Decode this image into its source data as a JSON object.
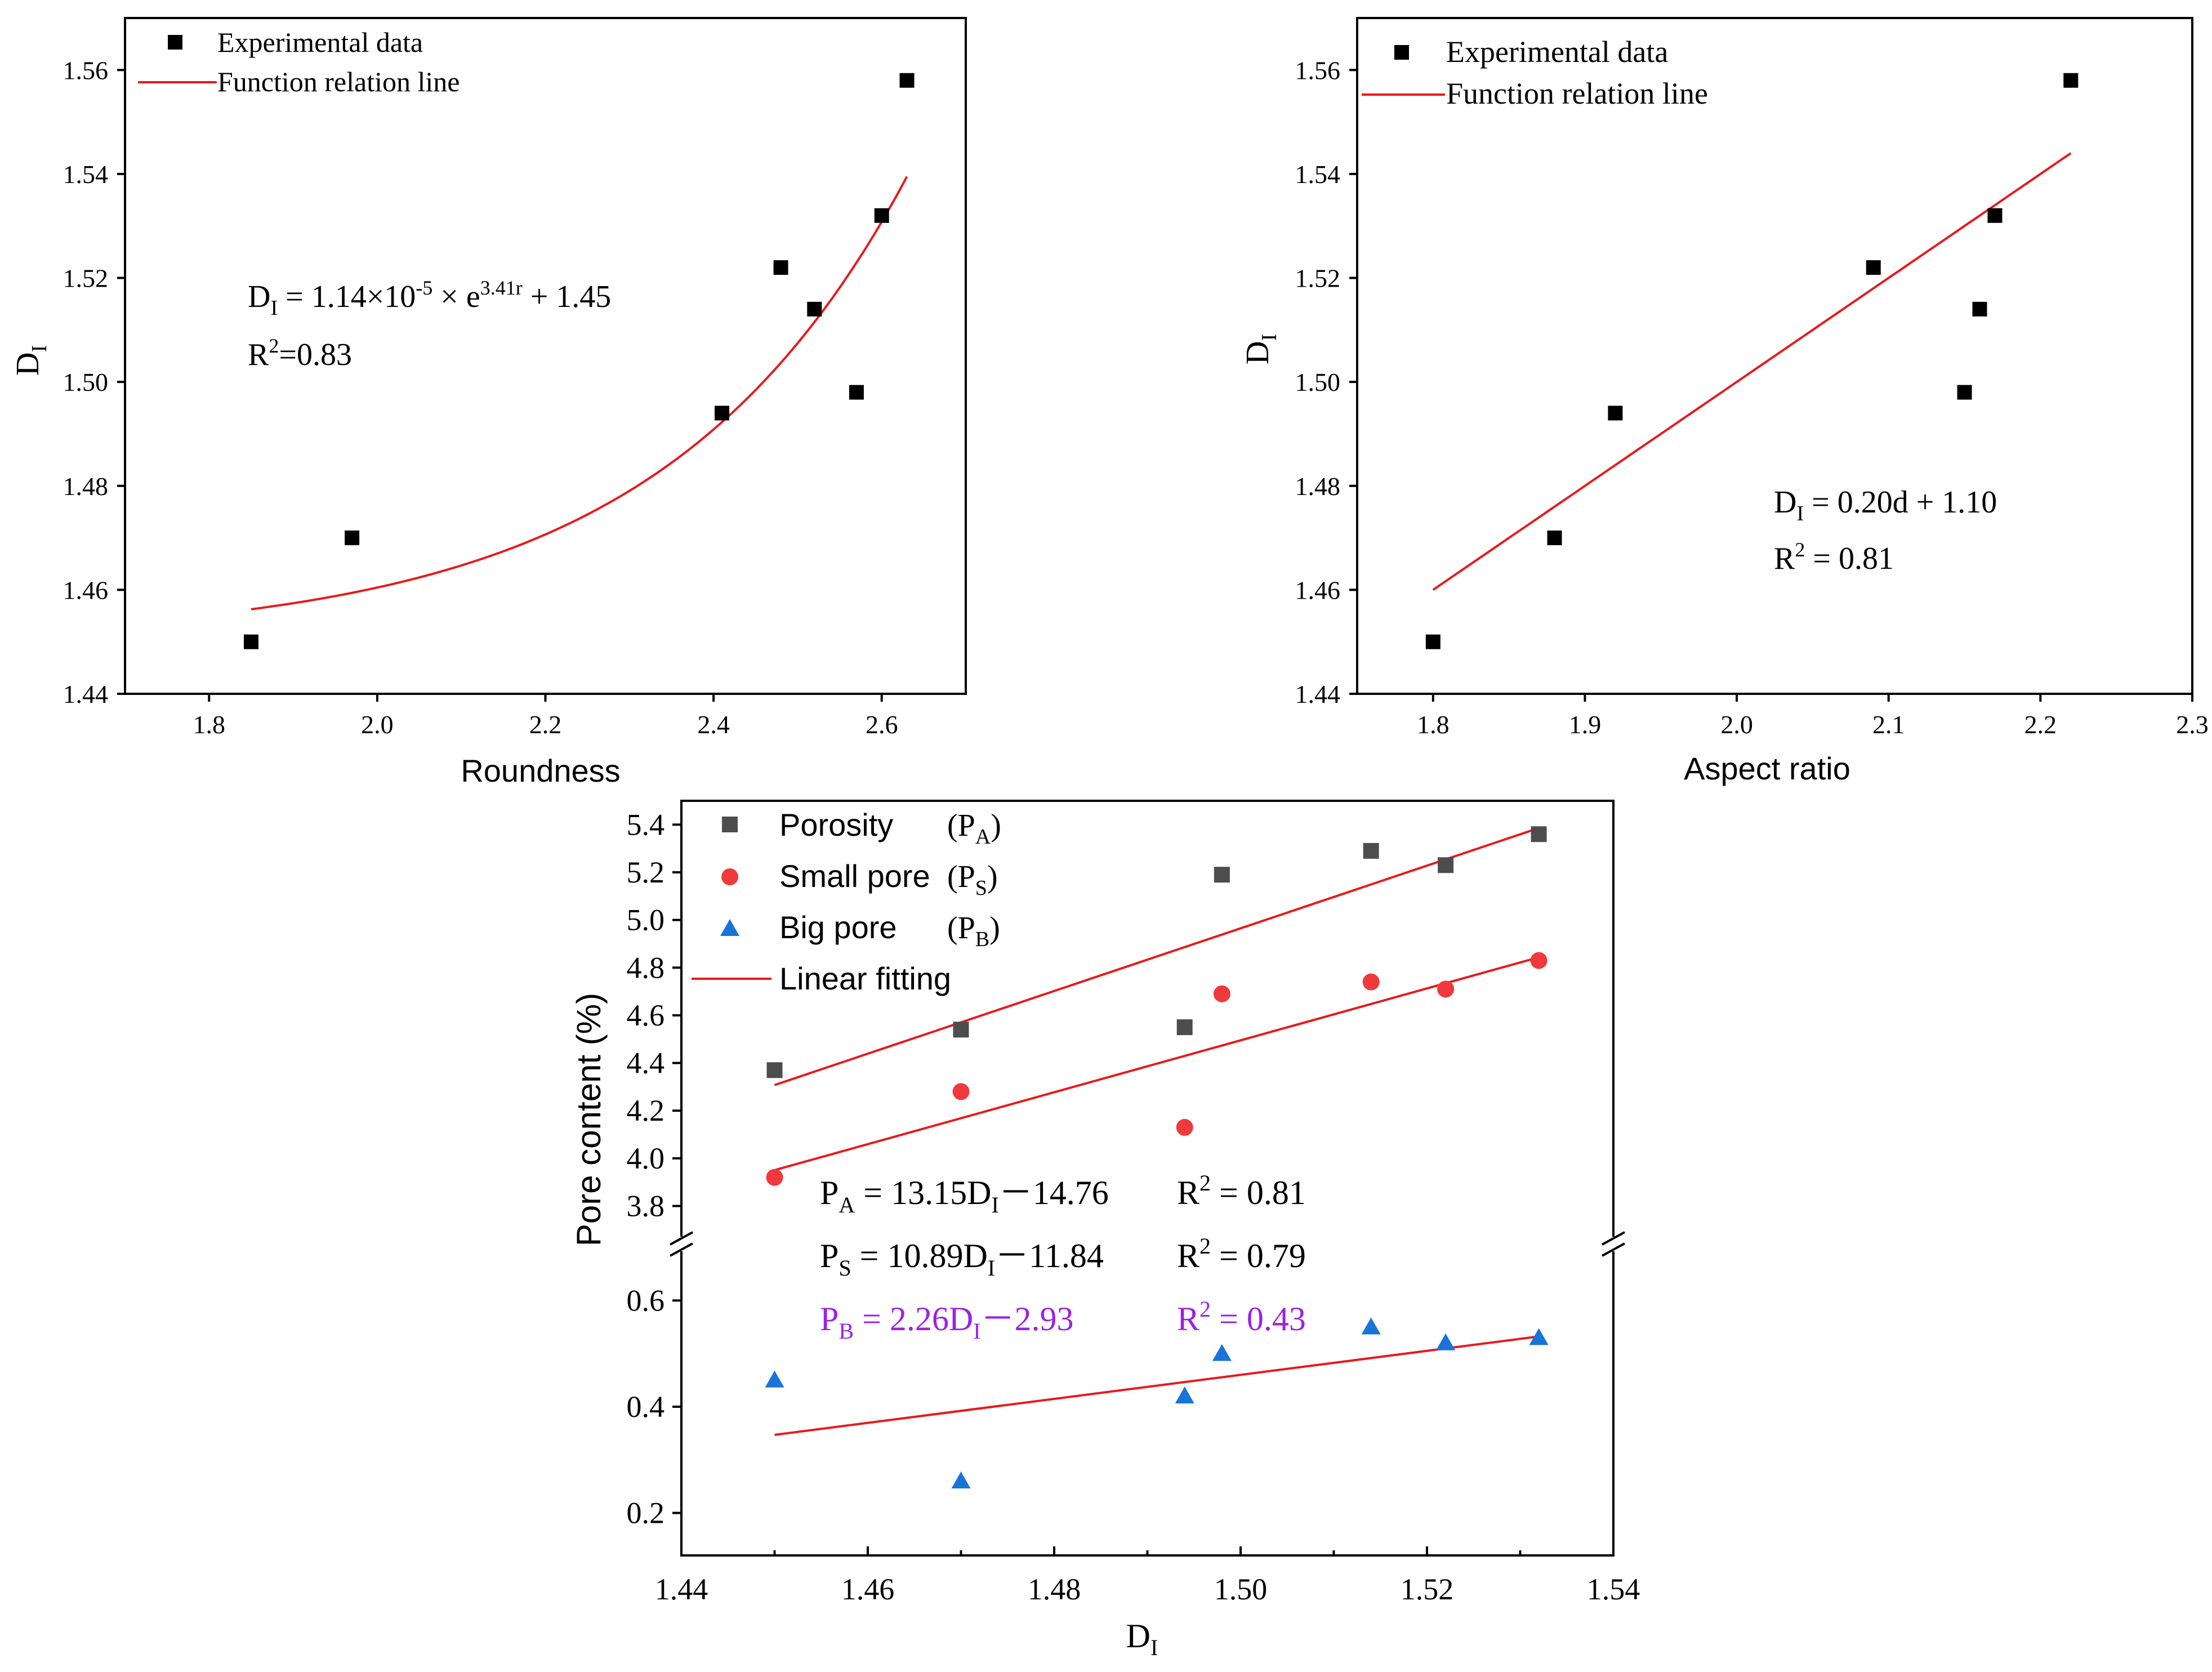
{
  "colors": {
    "experimental": "#000000",
    "fit_line": "#e8191c",
    "porosity": "#4d4d4d",
    "small_pore": "#ee3a3c",
    "big_pore": "#1874d8",
    "pb_equation": "#9b21e6",
    "axis": "#000000"
  },
  "chart_data": [
    {
      "id": "roundness",
      "type": "scatter",
      "title": "",
      "xlabel": "Roundness",
      "ylabel": "D",
      "ylabel_sub": "I",
      "xlim": [
        1.7,
        2.7
      ],
      "ylim": [
        1.44,
        1.57
      ],
      "xticks": [
        1.8,
        2.0,
        2.2,
        2.4,
        2.6
      ],
      "xtick_labels": [
        "1.8",
        "2.0",
        "2.2",
        "2.4",
        "2.6"
      ],
      "yticks": [
        1.44,
        1.46,
        1.48,
        1.5,
        1.52,
        1.54,
        1.56
      ],
      "ytick_labels": [
        "1.44",
        "1.46",
        "1.48",
        "1.50",
        "1.52",
        "1.54",
        "1.56"
      ],
      "legend": [
        "Experimental data",
        "Function relation line"
      ],
      "legend_position": "top-left",
      "series": [
        {
          "name": "Experimental data",
          "marker": "square",
          "x": [
            1.85,
            1.97,
            2.41,
            2.48,
            2.52,
            2.57,
            2.6,
            2.63
          ],
          "y": [
            1.45,
            1.47,
            1.494,
            1.522,
            1.514,
            1.498,
            1.532,
            1.558
          ]
        }
      ],
      "fit": {
        "kind": "exponential",
        "a": 1.14e-05,
        "b": 3.41,
        "c": 1.45,
        "x_range": [
          1.85,
          2.63
        ]
      },
      "equation": {
        "lhs": "D",
        "lhs_sub": "I",
        "mid": " = 1.14×10",
        "exp1": "-5",
        "mid2": " × e",
        "exp2": "3.41r",
        "tail": " + 1.45"
      },
      "r2": {
        "lead": "R",
        "sup": "2",
        "tail": "=0.83"
      }
    },
    {
      "id": "aspect",
      "type": "scatter",
      "title": "",
      "xlabel": "Aspect ratio",
      "ylabel": "D",
      "ylabel_sub": "I",
      "xlim": [
        1.75,
        2.3
      ],
      "ylim": [
        1.44,
        1.57
      ],
      "xticks": [
        1.8,
        1.9,
        2.0,
        2.1,
        2.2,
        2.3
      ],
      "xtick_labels": [
        "1.8",
        "1.9",
        "2.0",
        "2.1",
        "2.2",
        "2.3"
      ],
      "yticks": [
        1.44,
        1.46,
        1.48,
        1.5,
        1.52,
        1.54,
        1.56
      ],
      "ytick_labels": [
        "1.44",
        "1.46",
        "1.48",
        "1.50",
        "1.52",
        "1.54",
        "1.56"
      ],
      "legend": [
        "Experimental data",
        "Function relation line"
      ],
      "legend_position": "top-left",
      "series": [
        {
          "name": "Experimental data",
          "marker": "square",
          "x": [
            1.8,
            1.88,
            1.92,
            2.09,
            2.15,
            2.16,
            2.17,
            2.22
          ],
          "y": [
            1.45,
            1.47,
            1.494,
            1.522,
            1.498,
            1.514,
            1.532,
            1.558
          ]
        }
      ],
      "fit": {
        "kind": "linear",
        "slope": 0.2,
        "intercept": 1.1,
        "x_range": [
          1.8,
          2.22
        ]
      },
      "equation": {
        "lhs": "D",
        "lhs_sub": "I",
        "tail": " = 0.20d + 1.10"
      },
      "r2": {
        "lead": "R",
        "sup": "2",
        "tail": " = 0.81"
      }
    },
    {
      "id": "pore",
      "type": "scatter",
      "title": "",
      "xlabel": "D",
      "xlabel_sub": "I",
      "ylabel": "Pore content (%)",
      "xlim": [
        1.44,
        1.54
      ],
      "ylim_upper": [
        3.65,
        5.5
      ],
      "ylim_lower": [
        0.12,
        0.7
      ],
      "axis_break": true,
      "xticks": [
        1.44,
        1.46,
        1.48,
        1.5,
        1.52,
        1.54
      ],
      "xtick_labels": [
        "1.44",
        "1.46",
        "1.48",
        "1.50",
        "1.52",
        "1.54"
      ],
      "yticks_upper": [
        3.8,
        4.0,
        4.2,
        4.4,
        4.6,
        4.8,
        5.0,
        5.2,
        5.4
      ],
      "ytick_labels_upper": [
        "3.8",
        "4.0",
        "4.2",
        "4.4",
        "4.6",
        "4.8",
        "5.0",
        "5.2",
        "5.4"
      ],
      "yticks_lower": [
        0.2,
        0.4,
        0.6
      ],
      "ytick_labels_lower": [
        "0.2",
        "0.4",
        "0.6"
      ],
      "legend_position": "top-left",
      "legend": [
        {
          "label": "Porosity",
          "paren_lead": "(P",
          "paren_sub": "A",
          "paren_tail": ")"
        },
        {
          "label": "Small pore",
          "paren_lead": "(P",
          "paren_sub": "S",
          "paren_tail": ")"
        },
        {
          "label": "Big pore",
          "paren_lead": "(P",
          "paren_sub": "B",
          "paren_tail": ")"
        },
        {
          "label": "Linear fitting"
        }
      ],
      "series": [
        {
          "name": "Porosity",
          "marker": "square",
          "x": [
            1.45,
            1.47,
            1.494,
            1.498,
            1.514,
            1.522,
            1.532
          ],
          "y": [
            4.37,
            4.54,
            4.55,
            5.19,
            5.29,
            5.23,
            5.36
          ]
        },
        {
          "name": "Small pore",
          "marker": "circle",
          "x": [
            1.45,
            1.47,
            1.494,
            1.498,
            1.514,
            1.522,
            1.532
          ],
          "y": [
            3.92,
            4.28,
            4.13,
            4.69,
            4.74,
            4.71,
            4.83
          ]
        },
        {
          "name": "Big pore",
          "marker": "triangle",
          "x": [
            1.45,
            1.47,
            1.494,
            1.498,
            1.514,
            1.522,
            1.532
          ],
          "y": [
            0.45,
            0.26,
            0.42,
            0.5,
            0.55,
            0.52,
            0.53
          ]
        }
      ],
      "fits": [
        {
          "series": "Porosity",
          "slope": 13.15,
          "intercept": -14.76,
          "x_range": [
            1.45,
            1.532
          ]
        },
        {
          "series": "Small pore",
          "slope": 10.89,
          "intercept": -11.84,
          "x_range": [
            1.45,
            1.532
          ]
        },
        {
          "series": "Big pore",
          "slope": 2.26,
          "intercept": -2.93,
          "x_range": [
            1.45,
            1.532
          ]
        }
      ],
      "equations": [
        {
          "lhs": "P",
          "lhs_sub": "A",
          "mid": " = 13.15D",
          "mid_sub": "I",
          "tail": "－14.76",
          "r_lead": "R",
          "r_sup": "2",
          "r_tail": " = 0.81"
        },
        {
          "lhs": "P",
          "lhs_sub": "S",
          "mid": " = 10.89D",
          "mid_sub": "I",
          "tail": "－11.84",
          "r_lead": "R",
          "r_sup": "2",
          "r_tail": " = 0.79"
        },
        {
          "lhs": "P",
          "lhs_sub": "B",
          "mid": " = 2.26D",
          "mid_sub": "I",
          "tail": "－2.93",
          "r_lead": "R",
          "r_sup": "2",
          "r_tail": " = 0.43"
        }
      ]
    }
  ]
}
